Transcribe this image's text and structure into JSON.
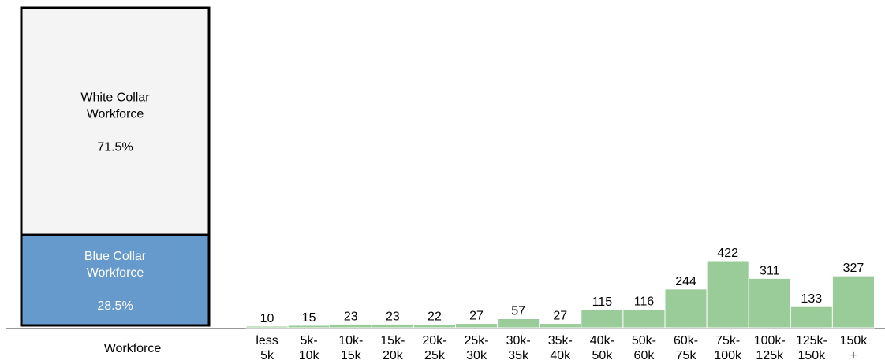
{
  "chart_data": [
    {
      "type": "bar",
      "stacked": true,
      "categories": [
        "Workforce"
      ],
      "series": [
        {
          "name": "Blue Collar Workforce",
          "label_lines": [
            "Blue Collar",
            "Workforce"
          ],
          "value": 28.5,
          "value_label": "28.5%"
        },
        {
          "name": "White Collar Workforce",
          "label_lines": [
            "White Collar",
            "Workforce"
          ],
          "value": 71.5,
          "value_label": "71.5%"
        }
      ],
      "xlabel": "Workforce"
    },
    {
      "type": "bar",
      "categories": [
        [
          "less",
          "5k"
        ],
        [
          "5k-",
          "10k"
        ],
        [
          "10k-",
          "15k"
        ],
        [
          "15k-",
          "20k"
        ],
        [
          "20k-",
          "25k"
        ],
        [
          "25k-",
          "30k"
        ],
        [
          "30k-",
          "35k"
        ],
        [
          "35k-",
          "40k"
        ],
        [
          "40k-",
          "50k"
        ],
        [
          "50k-",
          "60k"
        ],
        [
          "60k-",
          "75k"
        ],
        [
          "75k-",
          "100k"
        ],
        [
          "100k-",
          "125k"
        ],
        [
          "125k-",
          "150k"
        ],
        [
          "150k",
          "+"
        ]
      ],
      "values": [
        10,
        15,
        23,
        23,
        22,
        27,
        57,
        27,
        115,
        116,
        244,
        422,
        311,
        133,
        327
      ],
      "ylim": [
        0,
        422
      ]
    }
  ],
  "colors": {
    "white_collar": "#f4f4f4",
    "blue_collar": "#6699cc",
    "bar_fill": "#99cc99",
    "bar_stroke": "#ffffff",
    "axis": "#999999",
    "outline": "#000000"
  }
}
